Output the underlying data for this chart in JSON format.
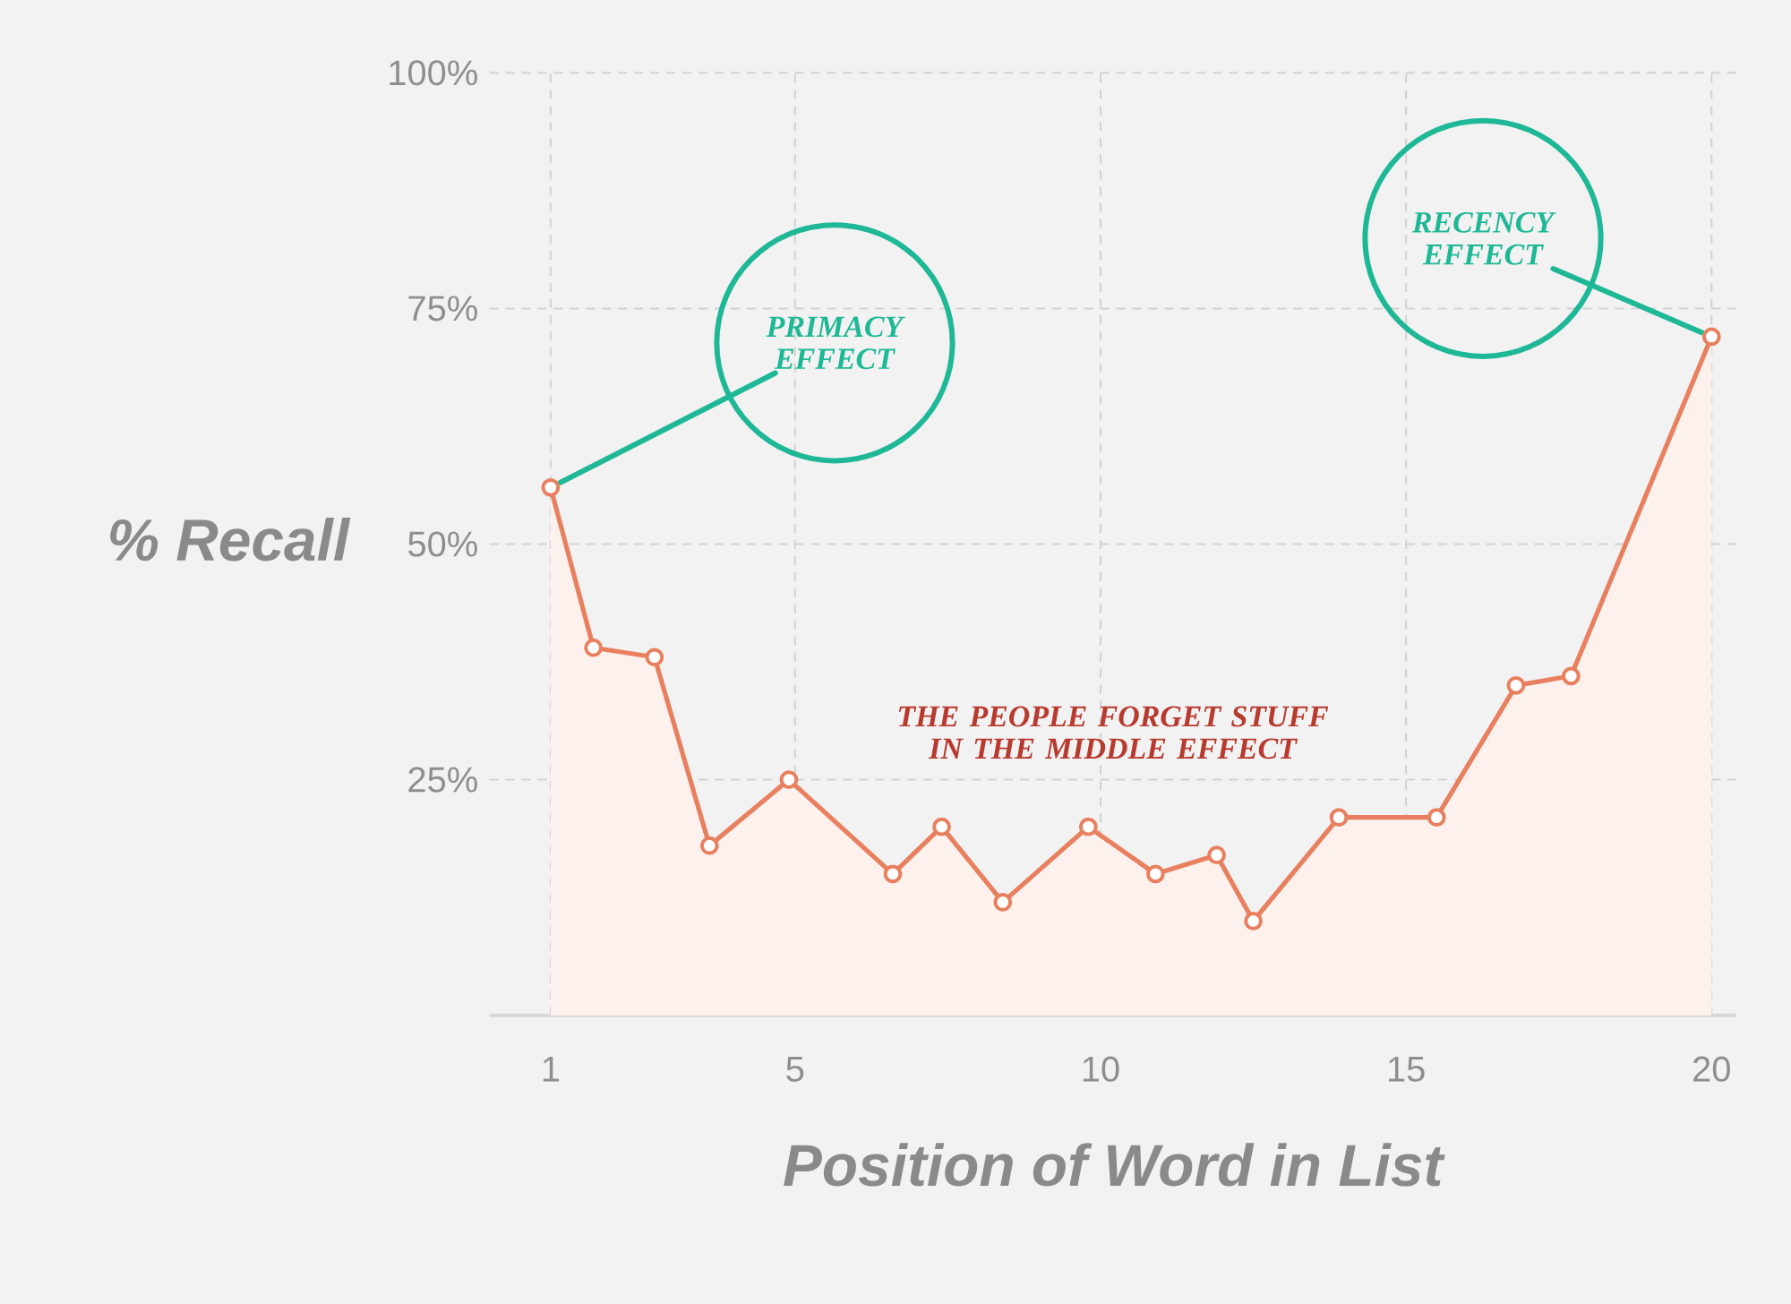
{
  "chart_data": {
    "type": "area",
    "xlabel": "Position of Word in List",
    "ylabel": "% Recall",
    "x": [
      1,
      1.7,
      2.7,
      3.6,
      4.9,
      6.6,
      7.4,
      8.4,
      9.8,
      10.9,
      11.9,
      12.5,
      13.9,
      15.5,
      16.8,
      17.7,
      20
    ],
    "values": [
      56,
      39,
      38,
      18,
      25,
      15,
      20,
      12,
      20,
      15,
      17,
      10,
      21,
      21,
      35,
      36,
      72
    ],
    "color": "#e8805f",
    "xlim": [
      0,
      20.4
    ],
    "xticks": [
      1,
      5,
      10,
      15,
      20
    ],
    "ylim": [
      0,
      100
    ],
    "yticks": [
      {
        "value": 25,
        "label": "25%"
      },
      {
        "value": 50,
        "label": "50%"
      },
      {
        "value": 75,
        "label": "75%"
      },
      {
        "value": 100,
        "label": "100%"
      }
    ],
    "grid": true,
    "marker": "circle",
    "line_style": "solid",
    "annotations": [
      {
        "text": "PRIMACY EFFECT",
        "x": 1,
        "y": 56
      },
      {
        "text": "RECENCY EFFECT",
        "x": 20,
        "y": 72
      },
      "THE PEOPLE FORGET STUFF IN THE MIDDLE EFFECT"
    ]
  }
}
